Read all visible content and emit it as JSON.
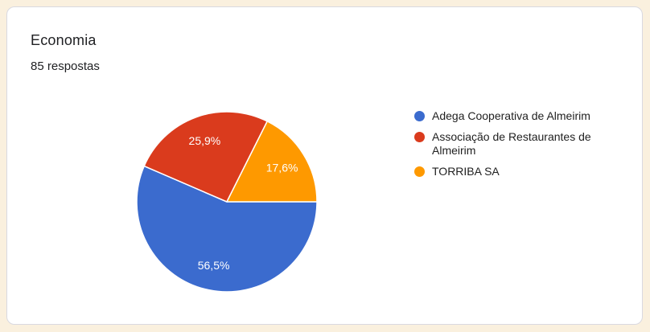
{
  "page": {
    "background_color": "#faf0de",
    "card_background": "#ffffff",
    "card_border_color": "#d9d9e0"
  },
  "card": {
    "title": "Economia",
    "subtitle": "85 respostas"
  },
  "chart_data": {
    "type": "pie",
    "title": "Economia",
    "responses_total": 85,
    "categories": [
      "Adega Cooperativa de Almeirim",
      "Associação de Restaurantes de Almeirim",
      "TORRIBA SA"
    ],
    "values": [
      56.5,
      25.9,
      17.6
    ],
    "value_labels": [
      "56,5%",
      "25,9%",
      "17,6%"
    ],
    "colors": [
      "#3b6bce",
      "#da3b1d",
      "#fe9900"
    ],
    "slice_label_color": "#ffffff",
    "legend_position": "right",
    "start_angle_deg": 0,
    "direction": "clockwise"
  }
}
